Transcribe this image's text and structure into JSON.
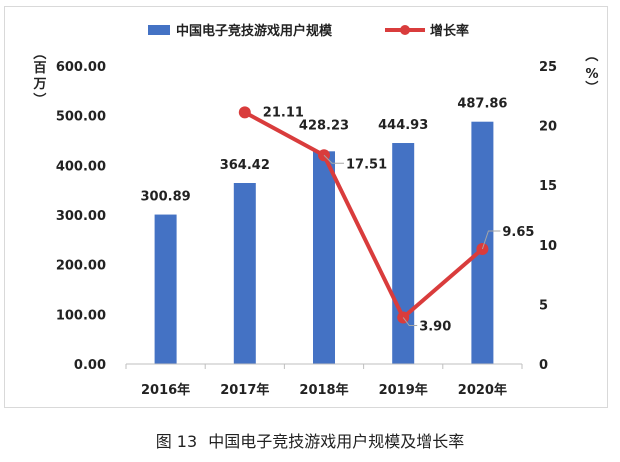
{
  "chart_data": {
    "type": "bar+line",
    "categories": [
      "2016年",
      "2017年",
      "2018年",
      "2019年",
      "2020年"
    ],
    "series": [
      {
        "name": "中国电子竞技游戏用户规模",
        "type": "bar",
        "axis": "left",
        "values": [
          300.89,
          364.42,
          428.23,
          444.93,
          487.86
        ],
        "labels": [
          "300.89",
          "364.42",
          "428.23",
          "444.93",
          "487.86"
        ],
        "color": "#4472c4"
      },
      {
        "name": "增长率",
        "type": "line",
        "axis": "right",
        "values": [
          null,
          21.11,
          17.51,
          3.9,
          9.65
        ],
        "labels": [
          "",
          "21.11",
          "17.51",
          "3.90",
          "9.65"
        ],
        "color": "#d93c3c"
      }
    ],
    "y_left": {
      "unit_label_chars": [
        "（",
        "百",
        "万",
        "）"
      ],
      "ylim": [
        0,
        600
      ],
      "ticks": [
        "0.00",
        "100.00",
        "200.00",
        "300.00",
        "400.00",
        "500.00",
        "600.00"
      ]
    },
    "y_right": {
      "unit_label_chars": [
        "（",
        "%",
        "）"
      ],
      "ylim": [
        0,
        25
      ],
      "ticks": [
        "0",
        "5",
        "10",
        "15",
        "20",
        "25"
      ]
    },
    "legend_position": "top-center",
    "grid": false
  },
  "caption": {
    "figure_no": "图 13",
    "title": "中国电子竞技游戏用户规模及增长率"
  }
}
